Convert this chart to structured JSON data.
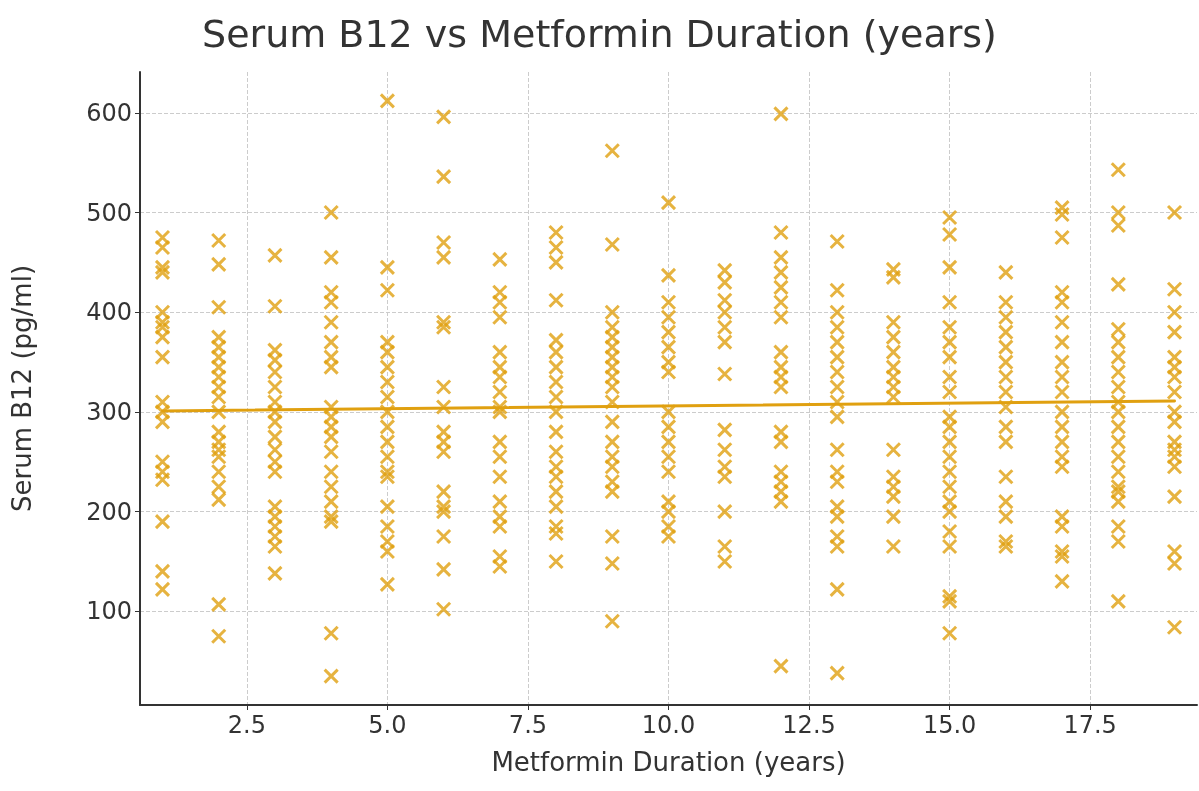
{
  "chart_data": {
    "type": "scatter",
    "title": "Serum B12 vs Metformin Duration (years)",
    "xlabel": "Metformin Duration (years)",
    "ylabel": "Serum B12 (pg/ml)",
    "xlim": [
      0.6,
      19.4
    ],
    "ylim": [
      6,
      641
    ],
    "xticks": [
      {
        "value": 2.5,
        "label": "2.5"
      },
      {
        "value": 5,
        "label": "5.0"
      },
      {
        "value": 7.5,
        "label": "7.5"
      },
      {
        "value": 10,
        "label": "10.0"
      },
      {
        "value": 12.5,
        "label": "12.5"
      },
      {
        "value": 15,
        "label": "15.0"
      },
      {
        "value": 17.5,
        "label": "17.5"
      }
    ],
    "yticks": [
      100,
      200,
      300,
      400,
      500,
      600
    ],
    "grid": true,
    "marker": "cross",
    "series": [
      {
        "color": "#e0a010",
        "x": [
          1,
          1,
          1,
          1,
          1,
          1,
          1,
          1,
          1,
          1,
          1,
          1,
          1,
          1,
          1,
          1,
          1,
          1,
          2,
          2,
          2,
          2,
          2,
          2,
          2,
          2,
          2,
          2,
          2,
          2,
          2,
          2,
          2,
          2,
          2,
          2,
          2,
          2,
          3,
          3,
          3,
          3,
          3,
          3,
          3,
          3,
          3,
          3,
          3,
          3,
          3,
          3,
          3,
          3,
          3,
          3,
          3,
          4,
          4,
          4,
          4,
          4,
          4,
          4,
          4,
          4,
          4,
          4,
          4,
          4,
          4,
          4,
          4,
          4,
          4,
          4,
          4,
          5,
          5,
          5,
          5,
          5,
          5,
          5,
          5,
          5,
          5,
          5,
          5,
          5,
          5,
          5,
          5,
          5,
          5,
          5,
          6,
          6,
          6,
          6,
          6,
          6,
          6,
          6,
          6,
          6,
          6,
          6,
          6,
          6,
          6,
          6,
          6,
          7,
          7,
          7,
          7,
          7,
          7,
          7,
          7,
          7,
          7,
          7,
          7,
          7,
          7,
          7,
          7,
          7,
          7,
          8,
          8,
          8,
          8,
          8,
          8,
          8,
          8,
          8,
          8,
          8,
          8,
          8,
          8,
          8,
          8,
          8,
          8,
          8,
          9,
          9,
          9,
          9,
          9,
          9,
          9,
          9,
          9,
          9,
          9,
          9,
          9,
          9,
          9,
          9,
          9,
          9,
          9,
          9,
          10,
          10,
          10,
          10,
          10,
          10,
          10,
          10,
          10,
          10,
          10,
          10,
          10,
          10,
          10,
          10,
          10,
          11,
          11,
          11,
          11,
          11,
          11,
          11,
          11,
          11,
          11,
          11,
          11,
          11,
          11,
          12,
          12,
          12,
          12,
          12,
          12,
          12,
          12,
          12,
          12,
          12,
          12,
          12,
          12,
          12,
          12,
          12,
          12,
          13,
          13,
          13,
          13,
          13,
          13,
          13,
          13,
          13,
          13,
          13,
          13,
          13,
          13,
          13,
          13,
          13,
          13,
          13,
          14,
          14,
          14,
          14,
          14,
          14,
          14,
          14,
          14,
          14,
          14,
          14,
          14,
          14,
          14,
          15,
          15,
          15,
          15,
          15,
          15,
          15,
          15,
          15,
          15,
          15,
          15,
          15,
          15,
          15,
          15,
          15,
          15,
          15,
          15,
          15,
          15,
          16,
          16,
          16,
          16,
          16,
          16,
          16,
          16,
          16,
          16,
          16,
          16,
          16,
          16,
          16,
          16,
          17,
          17,
          17,
          17,
          17,
          17,
          17,
          17,
          17,
          17,
          17,
          17,
          17,
          17,
          17,
          17,
          17,
          17,
          17,
          17,
          18,
          18,
          18,
          18,
          18,
          18,
          18,
          18,
          18,
          18,
          18,
          18,
          18,
          18,
          18,
          18,
          18,
          18,
          18,
          18,
          18,
          19,
          19,
          19,
          19,
          19,
          19,
          19,
          19,
          19,
          19,
          19,
          19,
          19,
          19,
          19,
          19,
          19,
          19
        ],
        "values": [
          475,
          465,
          445,
          440,
          400,
          390,
          385,
          375,
          355,
          310,
          300,
          290,
          250,
          240,
          232,
          190,
          140,
          122,
          472,
          448,
          405,
          375,
          365,
          355,
          345,
          335,
          325,
          315,
          300,
          280,
          270,
          262,
          255,
          240,
          225,
          212,
          107,
          75,
          457,
          406,
          362,
          352,
          340,
          325,
          310,
          300,
          290,
          275,
          262,
          250,
          240,
          205,
          195,
          185,
          175,
          165,
          138,
          500,
          455,
          420,
          410,
          390,
          370,
          355,
          345,
          305,
          295,
          285,
          275,
          260,
          240,
          225,
          210,
          195,
          190,
          78,
          35,
          612,
          445,
          422,
          370,
          360,
          345,
          330,
          315,
          300,
          285,
          270,
          255,
          240,
          235,
          205,
          185,
          170,
          160,
          127,
          596,
          536,
          470,
          455,
          390,
          385,
          325,
          305,
          280,
          270,
          260,
          220,
          205,
          200,
          175,
          142,
          102,
          453,
          420,
          410,
          395,
          360,
          345,
          335,
          320,
          305,
          300,
          270,
          255,
          235,
          210,
          195,
          185,
          155,
          145,
          480,
          465,
          450,
          412,
          372,
          360,
          345,
          330,
          315,
          300,
          280,
          260,
          245,
          235,
          220,
          205,
          185,
          178,
          150,
          562,
          468,
          400,
          385,
          375,
          365,
          355,
          345,
          335,
          325,
          310,
          290,
          270,
          255,
          245,
          230,
          220,
          175,
          148,
          90,
          510,
          437,
          410,
          395,
          380,
          365,
          350,
          340,
          300,
          285,
          270,
          255,
          240,
          210,
          200,
          185,
          175,
          442,
          430,
          412,
          400,
          385,
          370,
          338,
          282,
          262,
          245,
          235,
          200,
          165,
          150,
          599,
          480,
          455,
          440,
          425,
          410,
          395,
          360,
          345,
          335,
          325,
          280,
          270,
          240,
          230,
          220,
          210,
          45,
          471,
          422,
          400,
          385,
          370,
          355,
          340,
          325,
          310,
          295,
          262,
          240,
          230,
          205,
          195,
          175,
          165,
          122,
          38,
          443,
          435,
          390,
          375,
          360,
          345,
          335,
          325,
          315,
          262,
          235,
          225,
          215,
          195,
          165,
          495,
          478,
          445,
          410,
          385,
          370,
          355,
          335,
          320,
          295,
          285,
          270,
          255,
          240,
          225,
          210,
          200,
          180,
          165,
          115,
          110,
          78,
          440,
          410,
          395,
          380,
          365,
          350,
          335,
          320,
          305,
          285,
          270,
          235,
          210,
          195,
          170,
          165,
          505,
          498,
          475,
          420,
          410,
          390,
          370,
          350,
          335,
          320,
          300,
          285,
          270,
          255,
          245,
          195,
          185,
          160,
          155,
          130,
          543,
          500,
          487,
          428,
          383,
          370,
          355,
          340,
          325,
          310,
          300,
          285,
          270,
          255,
          240,
          225,
          220,
          210,
          185,
          170,
          110,
          500,
          423,
          400,
          380,
          355,
          345,
          335,
          320,
          300,
          290,
          270,
          262,
          255,
          245,
          215,
          160,
          148,
          84
        ]
      },
      {
        "type": "line",
        "color": "#e0a010",
        "marker": "none",
        "x": [
          1,
          19
        ],
        "values": [
          301,
          311
        ]
      }
    ]
  }
}
